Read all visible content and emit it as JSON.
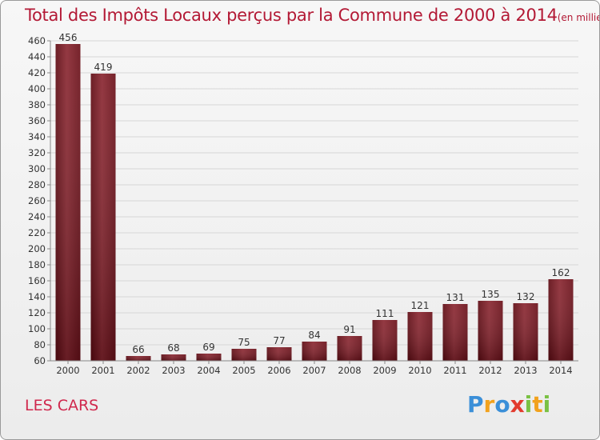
{
  "title": "Total des Impôts Locaux perçus par la Commune de 2000 à 2014",
  "title_unit": "(en milliers d'€)",
  "commune": "LES CARS",
  "logo": {
    "p": "P",
    "r": "r",
    "o": "o",
    "x": "x",
    "i1": "i",
    "t": "t",
    "i2": "i"
  },
  "colors": {
    "bar": "#7a1a22",
    "title": "#b31935",
    "commune": "#d0284d"
  },
  "chart_data": {
    "type": "bar",
    "categories": [
      "2000",
      "2001",
      "2002",
      "2003",
      "2004",
      "2005",
      "2006",
      "2007",
      "2008",
      "2009",
      "2010",
      "2011",
      "2012",
      "2013",
      "2014"
    ],
    "values": [
      456,
      419,
      66,
      68,
      69,
      75,
      77,
      84,
      91,
      111,
      121,
      131,
      135,
      132,
      162
    ],
    "ylim": [
      60,
      460
    ],
    "yticks": [
      60,
      80,
      100,
      120,
      140,
      160,
      180,
      200,
      220,
      240,
      260,
      280,
      300,
      320,
      340,
      360,
      380,
      400,
      420,
      440,
      460
    ],
    "grid": true
  }
}
